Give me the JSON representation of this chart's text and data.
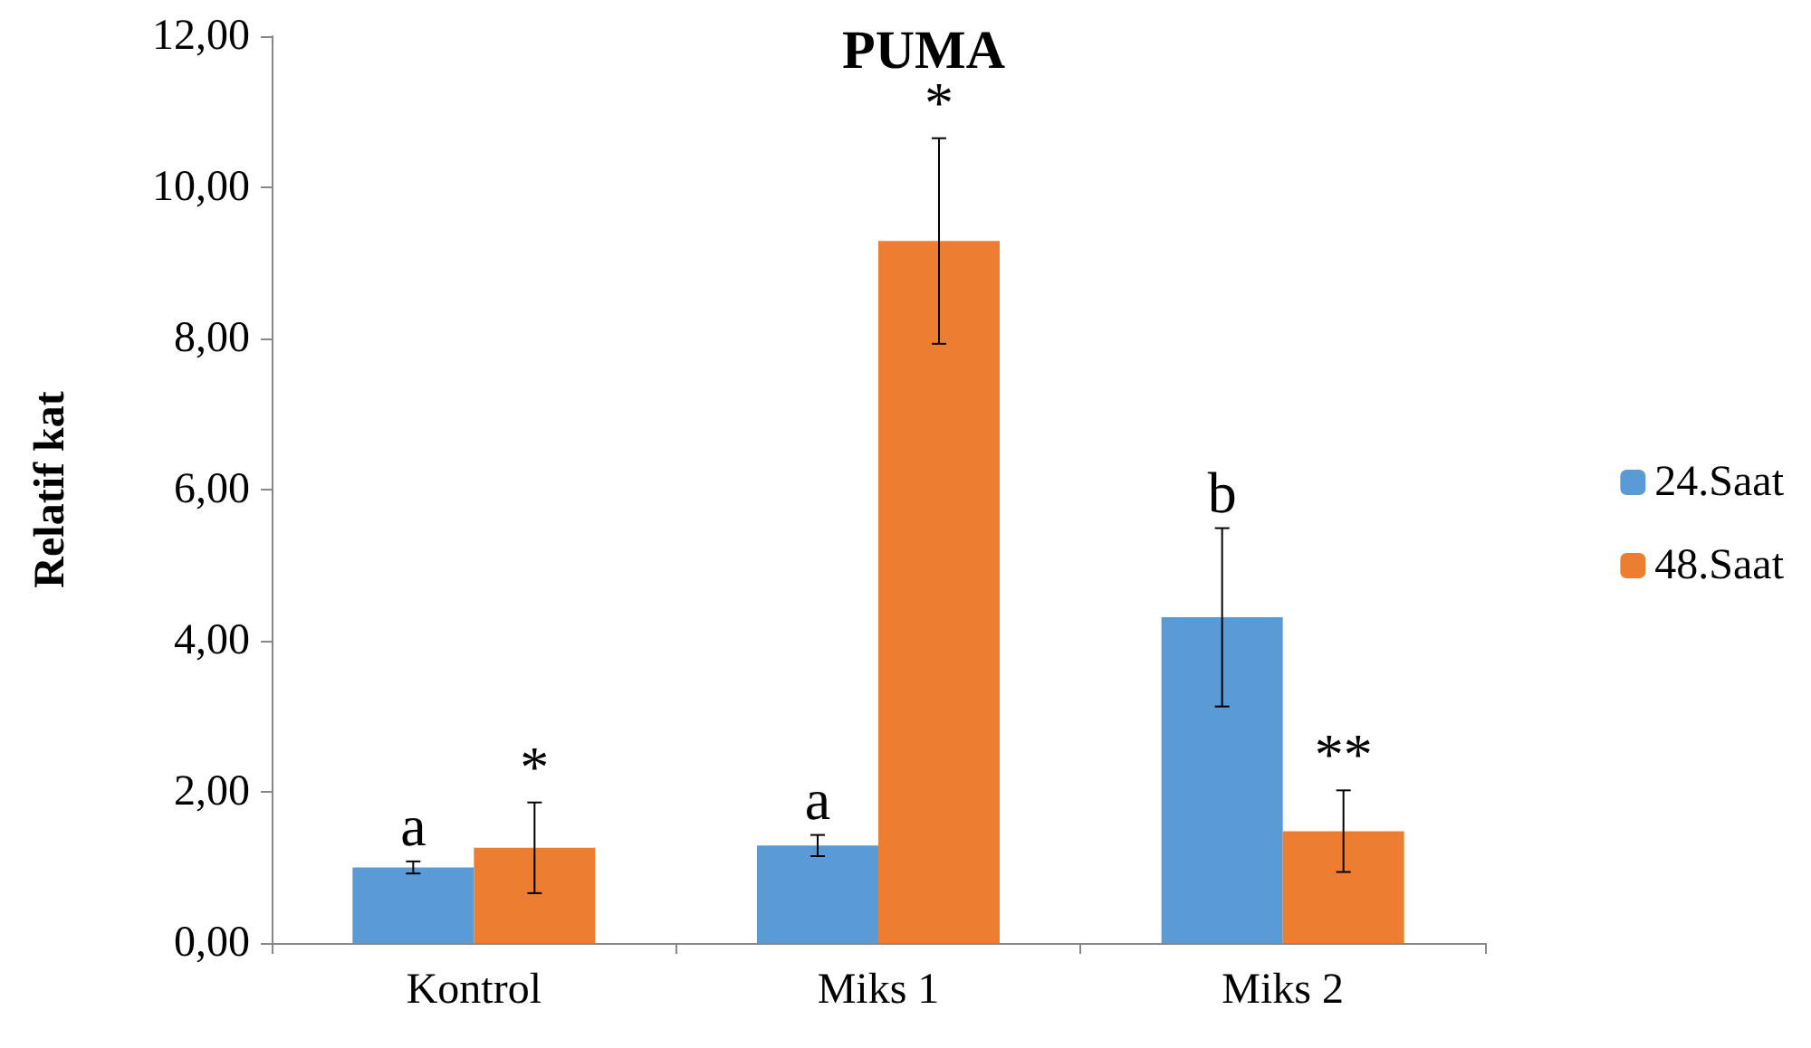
{
  "chart_data": {
    "type": "bar",
    "title": "PUMA",
    "ylabel": "Relatif kat",
    "categories": [
      "Kontrol",
      "Miks 1",
      "Miks 2"
    ],
    "series": [
      {
        "name": "24.Saat",
        "color": "#5b9bd5",
        "values": [
          1.0,
          1.29,
          4.31
        ],
        "errors": [
          0.08,
          0.14,
          1.18
        ]
      },
      {
        "name": "48.Saat",
        "color": "#ed7d31",
        "values": [
          1.26,
          9.29,
          1.48
        ],
        "errors": [
          0.6,
          1.36,
          0.54
        ]
      }
    ],
    "ylim": [
      0,
      12
    ],
    "yticks": [
      {
        "value": 0,
        "label": "0,00"
      },
      {
        "value": 2,
        "label": "2,00"
      },
      {
        "value": 4,
        "label": "4,00"
      },
      {
        "value": 6,
        "label": "6,00"
      },
      {
        "value": 8,
        "label": "8,00"
      },
      {
        "value": 10,
        "label": "10,00"
      },
      {
        "value": 12,
        "label": "12,00"
      }
    ],
    "annotations": [
      {
        "text": "a",
        "x": "Kontrol",
        "y": 1.0
      },
      {
        "text": "*",
        "x": "Kontrol",
        "y": 1.26
      },
      {
        "text": "a",
        "x": "Miks 1",
        "y": 1.29
      },
      {
        "text": "*",
        "x": "Miks 1",
        "y": 9.29
      },
      {
        "text": "b",
        "x": "Miks 2",
        "y": 4.31
      },
      {
        "text": "**",
        "x": "Miks 2",
        "y": 1.48
      }
    ],
    "grid": false,
    "legend": "right"
  }
}
